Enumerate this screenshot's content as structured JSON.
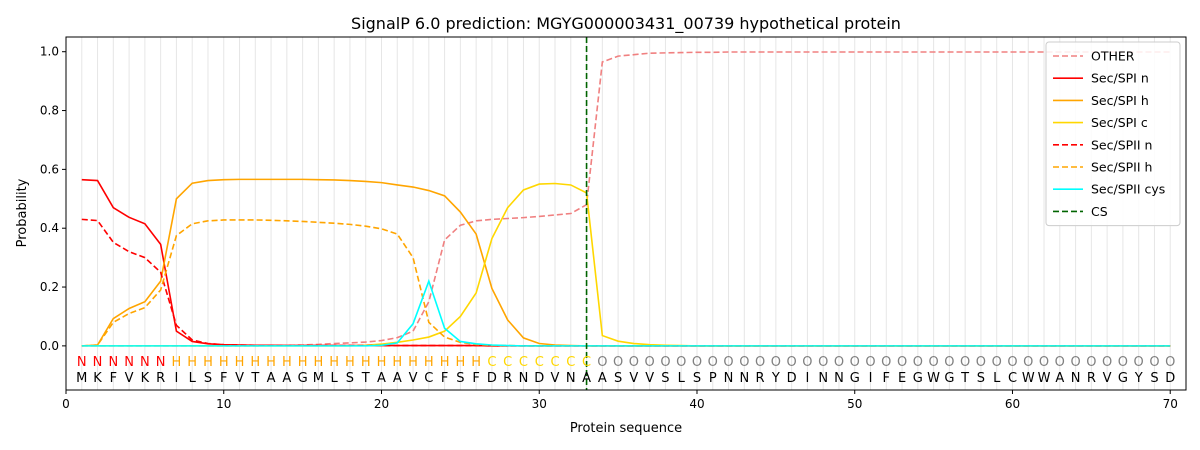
{
  "chart_data": {
    "type": "line",
    "title": "SignalP 6.0 prediction: MGYG000003431_00739 hypothetical protein",
    "xlabel": "Protein sequence",
    "ylabel": "Probability",
    "xlim": [
      0,
      71
    ],
    "ylim": [
      -0.15,
      1.05
    ],
    "xticks": [
      0,
      10,
      20,
      30,
      40,
      50,
      60,
      70
    ],
    "yticks": [
      0.0,
      0.2,
      0.4,
      0.6,
      0.8,
      1.0
    ],
    "ytick_labels": [
      "0.0",
      "0.2",
      "0.4",
      "0.6",
      "0.8",
      "1.0"
    ],
    "grid": "vertical lines at each residue",
    "legend_position": "top-right",
    "sequence": [
      "M",
      "K",
      "F",
      "V",
      "K",
      "R",
      "I",
      "L",
      "S",
      "F",
      "V",
      "T",
      "A",
      "A",
      "G",
      "M",
      "L",
      "S",
      "T",
      "A",
      "A",
      "V",
      "C",
      "F",
      "S",
      "F",
      "D",
      "R",
      "N",
      "D",
      "V",
      "N",
      "A",
      "A",
      "S",
      "V",
      "V",
      "S",
      "L",
      "S",
      "P",
      "N",
      "N",
      "R",
      "Y",
      "D",
      "I",
      "N",
      "N",
      "G",
      "I",
      "F",
      "E",
      "G",
      "W",
      "G",
      "T",
      "S",
      "L",
      "C",
      "W",
      "W",
      "A",
      "N",
      "R",
      "V",
      "G",
      "Y",
      "S",
      "D"
    ],
    "region_labels": [
      "N",
      "N",
      "N",
      "N",
      "N",
      "N",
      "H",
      "H",
      "H",
      "H",
      "H",
      "H",
      "H",
      "H",
      "H",
      "H",
      "H",
      "H",
      "H",
      "H",
      "H",
      "H",
      "H",
      "H",
      "H",
      "H",
      "C",
      "C",
      "C",
      "C",
      "C",
      "C",
      "C",
      "O",
      "O",
      "O",
      "O",
      "O",
      "O",
      "O",
      "O",
      "O",
      "O",
      "O",
      "O",
      "O",
      "O",
      "O",
      "O",
      "O",
      "O",
      "O",
      "O",
      "O",
      "O",
      "O",
      "O",
      "O",
      "O",
      "O",
      "O",
      "O",
      "O",
      "O",
      "O",
      "O",
      "O",
      "O",
      "O",
      "O"
    ],
    "region_colors": {
      "N": "#ff0000",
      "H": "#ffa500",
      "C": "#ffd700",
      "O": "#808080"
    },
    "cs_position": 33,
    "cs_label": "CS",
    "cs_color": "#006400",
    "series": [
      {
        "name": "OTHER",
        "color": "#f08080",
        "dash": "dashed",
        "values": [
          0.0,
          0.0,
          0.0,
          0.0,
          0.0,
          0.0,
          0.0,
          0.0,
          0.0,
          0.0,
          0.0,
          0.0,
          0.001,
          0.002,
          0.003,
          0.005,
          0.008,
          0.01,
          0.013,
          0.018,
          0.028,
          0.05,
          0.15,
          0.36,
          0.41,
          0.425,
          0.43,
          0.433,
          0.436,
          0.44,
          0.445,
          0.45,
          0.48,
          0.965,
          0.985,
          0.99,
          0.995,
          0.996,
          0.997,
          0.998,
          0.998,
          0.999,
          0.999,
          0.999,
          0.999,
          0.999,
          0.999,
          0.999,
          0.999,
          0.999,
          0.999,
          0.999,
          0.999,
          0.999,
          0.999,
          0.999,
          0.999,
          0.999,
          0.999,
          0.999,
          0.999,
          0.999,
          0.999,
          0.999,
          0.999,
          0.999,
          0.999,
          0.999,
          0.999,
          0.999
        ]
      },
      {
        "name": "Sec/SPI n",
        "color": "#ff0000",
        "dash": "solid",
        "values": [
          0.565,
          0.562,
          0.47,
          0.437,
          0.415,
          0.345,
          0.05,
          0.015,
          0.007,
          0.004,
          0.003,
          0.002,
          0.002,
          0.001,
          0.001,
          0.001,
          0.001,
          0.001,
          0.001,
          0.001,
          0.001,
          0.001,
          0.001,
          0.001,
          0.001,
          0.001,
          0.0,
          0.0,
          0.0,
          0.0,
          0.0,
          0.0,
          0.0,
          0.0,
          0.0,
          0.0,
          0.0,
          0.0,
          0.0,
          0.0,
          0.0,
          0.0,
          0.0,
          0.0,
          0.0,
          0.0,
          0.0,
          0.0,
          0.0,
          0.0,
          0.0,
          0.0,
          0.0,
          0.0,
          0.0,
          0.0,
          0.0,
          0.0,
          0.0,
          0.0,
          0.0,
          0.0,
          0.0,
          0.0,
          0.0,
          0.0,
          0.0,
          0.0,
          0.0,
          0.0
        ]
      },
      {
        "name": "Sec/SPI h",
        "color": "#ffa500",
        "dash": "solid",
        "values": [
          0.0,
          0.003,
          0.093,
          0.127,
          0.15,
          0.22,
          0.5,
          0.553,
          0.562,
          0.565,
          0.566,
          0.566,
          0.566,
          0.566,
          0.566,
          0.565,
          0.564,
          0.562,
          0.559,
          0.555,
          0.547,
          0.54,
          0.528,
          0.51,
          0.455,
          0.38,
          0.195,
          0.088,
          0.027,
          0.008,
          0.003,
          0.001,
          0.0,
          0.0,
          0.0,
          0.0,
          0.0,
          0.0,
          0.0,
          0.0,
          0.0,
          0.0,
          0.0,
          0.0,
          0.0,
          0.0,
          0.0,
          0.0,
          0.0,
          0.0,
          0.0,
          0.0,
          0.0,
          0.0,
          0.0,
          0.0,
          0.0,
          0.0,
          0.0,
          0.0,
          0.0,
          0.0,
          0.0,
          0.0,
          0.0,
          0.0,
          0.0,
          0.0,
          0.0,
          0.0
        ]
      },
      {
        "name": "Sec/SPI c",
        "color": "#ffd700",
        "dash": "solid",
        "values": [
          0.0,
          0.0,
          0.0,
          0.0,
          0.0,
          0.0,
          0.0,
          0.0,
          0.0,
          0.0,
          0.0,
          0.0,
          0.0,
          0.0,
          0.0,
          0.0,
          0.0,
          0.0,
          0.002,
          0.006,
          0.012,
          0.02,
          0.03,
          0.05,
          0.1,
          0.18,
          0.365,
          0.47,
          0.53,
          0.55,
          0.552,
          0.547,
          0.52,
          0.035,
          0.016,
          0.008,
          0.004,
          0.002,
          0.001,
          0.0,
          0.0,
          0.0,
          0.0,
          0.0,
          0.0,
          0.0,
          0.0,
          0.0,
          0.0,
          0.0,
          0.0,
          0.0,
          0.0,
          0.0,
          0.0,
          0.0,
          0.0,
          0.0,
          0.0,
          0.0,
          0.0,
          0.0,
          0.0,
          0.0,
          0.0,
          0.0,
          0.0,
          0.0,
          0.0,
          0.0
        ]
      },
      {
        "name": "Sec/SPII n",
        "color": "#ff0000",
        "dash": "dashed",
        "values": [
          0.43,
          0.426,
          0.352,
          0.32,
          0.3,
          0.25,
          0.07,
          0.02,
          0.008,
          0.004,
          0.003,
          0.002,
          0.002,
          0.001,
          0.001,
          0.001,
          0.001,
          0.001,
          0.001,
          0.001,
          0.001,
          0.001,
          0.001,
          0.001,
          0.001,
          0.001,
          0.0,
          0.0,
          0.0,
          0.0,
          0.0,
          0.0,
          0.0,
          0.0,
          0.0,
          0.0,
          0.0,
          0.0,
          0.0,
          0.0,
          0.0,
          0.0,
          0.0,
          0.0,
          0.0,
          0.0,
          0.0,
          0.0,
          0.0,
          0.0,
          0.0,
          0.0,
          0.0,
          0.0,
          0.0,
          0.0,
          0.0,
          0.0,
          0.0,
          0.0,
          0.0,
          0.0,
          0.0,
          0.0,
          0.0,
          0.0,
          0.0,
          0.0,
          0.0,
          0.0
        ]
      },
      {
        "name": "Sec/SPII h",
        "color": "#ffa500",
        "dash": "dashed",
        "values": [
          0.0,
          0.003,
          0.08,
          0.11,
          0.13,
          0.19,
          0.375,
          0.415,
          0.425,
          0.428,
          0.428,
          0.428,
          0.427,
          0.425,
          0.423,
          0.42,
          0.417,
          0.413,
          0.407,
          0.398,
          0.38,
          0.3,
          0.08,
          0.03,
          0.012,
          0.005,
          0.002,
          0.001,
          0.0,
          0.0,
          0.0,
          0.0,
          0.0,
          0.0,
          0.0,
          0.0,
          0.0,
          0.0,
          0.0,
          0.0,
          0.0,
          0.0,
          0.0,
          0.0,
          0.0,
          0.0,
          0.0,
          0.0,
          0.0,
          0.0,
          0.0,
          0.0,
          0.0,
          0.0,
          0.0,
          0.0,
          0.0,
          0.0,
          0.0,
          0.0,
          0.0,
          0.0,
          0.0,
          0.0,
          0.0,
          0.0,
          0.0,
          0.0,
          0.0,
          0.0
        ]
      },
      {
        "name": "Sec/SPII cys",
        "color": "#00ffff",
        "dash": "solid",
        "values": [
          0.0,
          0.0,
          0.0,
          0.0,
          0.0,
          0.0,
          0.0,
          0.0,
          0.0,
          0.0,
          0.0,
          0.0,
          0.0,
          0.0,
          0.0,
          0.0,
          0.0,
          0.0,
          0.0,
          0.002,
          0.01,
          0.075,
          0.22,
          0.06,
          0.015,
          0.007,
          0.003,
          0.001,
          0.0,
          0.0,
          0.0,
          0.0,
          0.0,
          0.0,
          0.0,
          0.0,
          0.0,
          0.0,
          0.0,
          0.0,
          0.0,
          0.0,
          0.0,
          0.0,
          0.0,
          0.0,
          0.0,
          0.0,
          0.0,
          0.0,
          0.0,
          0.0,
          0.0,
          0.0,
          0.0,
          0.0,
          0.0,
          0.0,
          0.0,
          0.0,
          0.0,
          0.0,
          0.0,
          0.0,
          0.0,
          0.0,
          0.0,
          0.0,
          0.0,
          0.0
        ]
      }
    ]
  }
}
